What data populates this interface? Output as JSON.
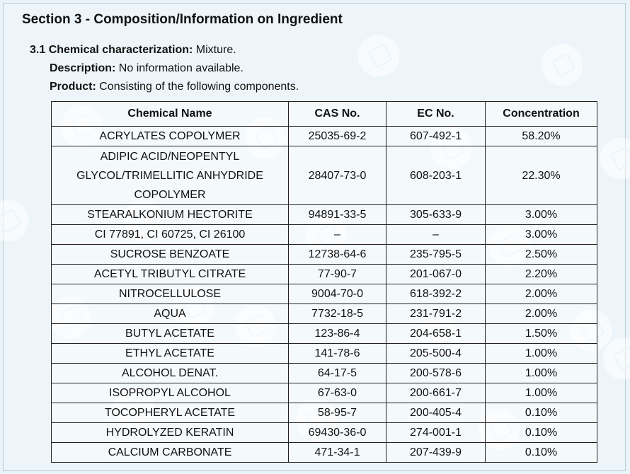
{
  "section": {
    "title": "Section 3 - Composition/Information on Ingredient"
  },
  "info": {
    "chemical_characterization_label": "3.1 Chemical characterization:",
    "chemical_characterization_value": "Mixture.",
    "description_label": "Description:",
    "description_value": "No information available.",
    "product_label": "Product:",
    "product_value": "Consisting of the following components."
  },
  "table": {
    "headers": {
      "chemical_name": "Chemical Name",
      "cas_no": "CAS No.",
      "ec_no": "EC No.",
      "concentration": "Concentration"
    },
    "rows": [
      {
        "name": "ACRYLATES COPOLYMER",
        "cas": "25035-69-2",
        "ec": "607-492-1",
        "concentration": "58.20%"
      },
      {
        "name": "ADIPIC ACID/NEOPENTYL GLYCOL/TRIMELLITIC ANHYDRIDE COPOLYMER",
        "cas": "28407-73-0",
        "ec": "608-203-1",
        "concentration": "22.30%"
      },
      {
        "name": "STEARALKONIUM HECTORITE",
        "cas": "94891-33-5",
        "ec": "305-633-9",
        "concentration": "3.00%"
      },
      {
        "name": "CI 77891, CI 60725, CI 26100",
        "cas": "–",
        "ec": "–",
        "concentration": "3.00%"
      },
      {
        "name": "SUCROSE BENZOATE",
        "cas": "12738-64-6",
        "ec": "235-795-5",
        "concentration": "2.50%"
      },
      {
        "name": "ACETYL TRIBUTYL CITRATE",
        "cas": "77-90-7",
        "ec": "201-067-0",
        "concentration": "2.20%"
      },
      {
        "name": "NITROCELLULOSE",
        "cas": "9004-70-0",
        "ec": "618-392-2",
        "concentration": "2.00%"
      },
      {
        "name": "AQUA",
        "cas": "7732-18-5",
        "ec": "231-791-2",
        "concentration": "2.00%"
      },
      {
        "name": "BUTYL ACETATE",
        "cas": "123-86-4",
        "ec": "204-658-1",
        "concentration": "1.50%"
      },
      {
        "name": "ETHYL ACETATE",
        "cas": "141-78-6",
        "ec": "205-500-4",
        "concentration": "1.00%"
      },
      {
        "name": "ALCOHOL DENAT.",
        "cas": "64-17-5",
        "ec": "200-578-6",
        "concentration": "1.00%"
      },
      {
        "name": "ISOPROPYL ALCOHOL",
        "cas": "67-63-0",
        "ec": "200-661-7",
        "concentration": "1.00%"
      },
      {
        "name": "TOCOPHERYL ACETATE",
        "cas": "58-95-7",
        "ec": "200-405-4",
        "concentration": "0.10%"
      },
      {
        "name": "HYDROLYZED KERATIN",
        "cas": "69430-36-0",
        "ec": "274-001-1",
        "concentration": "0.10%"
      },
      {
        "name": "CALCIUM CARBONATE",
        "cas": "471-34-1",
        "ec": "207-439-9",
        "concentration": "0.10%"
      }
    ]
  },
  "decorations": {
    "background_color": "#edf5fa",
    "watermark_icon": "logo-watermark-icon"
  }
}
